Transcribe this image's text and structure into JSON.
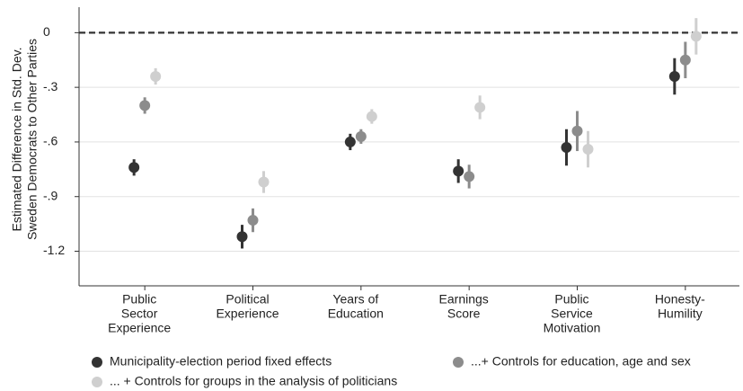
{
  "chart_data": {
    "type": "errorbar",
    "y_label": [
      "Estimated Difference in Std. Dev.",
      "Sweden Democrats to Other Parties"
    ],
    "categories": [
      [
        "Public",
        "Sector",
        "Experience"
      ],
      [
        "Political",
        "Experience"
      ],
      [
        "Years of",
        "Education"
      ],
      [
        "Earnings",
        "Score"
      ],
      [
        "Public",
        "Service",
        "Motivation"
      ],
      [
        "Honesty-",
        "Humility"
      ]
    ],
    "series": [
      {
        "name": "Municipality-election period fixed effects",
        "color": "#333333",
        "values": [
          -0.74,
          -1.12,
          -0.6,
          -0.76,
          -0.63,
          -0.24
        ],
        "errors": [
          0.045,
          0.065,
          0.045,
          0.065,
          0.1,
          0.1
        ]
      },
      {
        "name": "...+ Controls for education, age and sex",
        "color": "#8c8c8c",
        "values": [
          -0.4,
          -1.03,
          -0.57,
          -0.79,
          -0.54,
          -0.15
        ],
        "errors": [
          0.045,
          0.065,
          0.04,
          0.065,
          0.11,
          0.1
        ]
      },
      {
        "name": "... + Controls for groups in the analysis of politicians",
        "color": "#cfcfcf",
        "values": [
          -0.24,
          -0.82,
          -0.46,
          -0.41,
          -0.64,
          -0.02
        ],
        "errors": [
          0.045,
          0.06,
          0.04,
          0.065,
          0.1,
          0.1
        ]
      }
    ],
    "ylim": [
      -1.39,
      0.14
    ],
    "yticks": [
      0,
      {
        "value": -0.3,
        "label": "-.3"
      },
      {
        "value": -0.6,
        "label": "-.6"
      },
      {
        "value": -0.9,
        "label": "-.9"
      },
      -1.2
    ],
    "reference_line": 0,
    "grid": true
  }
}
